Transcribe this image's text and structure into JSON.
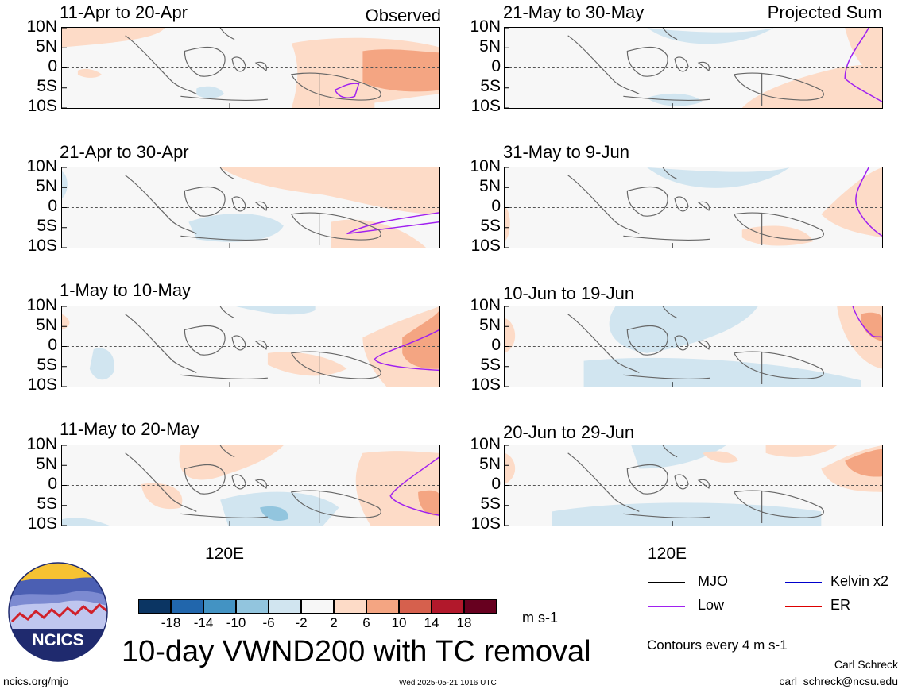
{
  "panels": [
    {
      "title": "11-Apr to 20-Apr",
      "tag": "Observed"
    },
    {
      "title": "21-Apr to 30-Apr",
      "tag": ""
    },
    {
      "title": "1-May to 10-May",
      "tag": ""
    },
    {
      "title": "11-May to 20-May",
      "tag": ""
    },
    {
      "title": "21-May to 30-May",
      "tag": "Projected Sum"
    },
    {
      "title": "31-May to 9-Jun",
      "tag": ""
    },
    {
      "title": "10-Jun to 19-Jun",
      "tag": ""
    },
    {
      "title": "20-Jun to 29-Jun",
      "tag": ""
    }
  ],
  "lat_labels": [
    "10N",
    "5N",
    "0",
    "5S",
    "10S"
  ],
  "lon_label": "120E",
  "colorbar": {
    "colors": [
      "#0b3563",
      "#2166ac",
      "#4393c3",
      "#92c5de",
      "#d1e5f0",
      "#f7f7f7",
      "#fddbc7",
      "#f4a582",
      "#d6604d",
      "#b2182b",
      "#67001f"
    ],
    "labels": [
      "-18",
      "-14",
      "-10",
      "-6",
      "-2",
      "2",
      "6",
      "10",
      "14",
      "18"
    ],
    "unit": "m s-1"
  },
  "legend": {
    "items": [
      {
        "label": "MJO",
        "color": "#000000"
      },
      {
        "label": "Kelvin x2",
        "color": "#0000cc"
      },
      {
        "label": "Low",
        "color": "#a020f0"
      },
      {
        "label": "ER",
        "color": "#dd0000"
      }
    ],
    "contours_note": "Contours every 4 m s-1"
  },
  "main_title": "10-day VWND200 with TC removal",
  "logo_text": "NCICS",
  "footer": {
    "url": "ncics.org/mjo",
    "timestamp": "Wed 2025-05-21 1016 UTC",
    "author": "Carl Schreck",
    "email": "carl_schreck@ncsu.edu"
  }
}
